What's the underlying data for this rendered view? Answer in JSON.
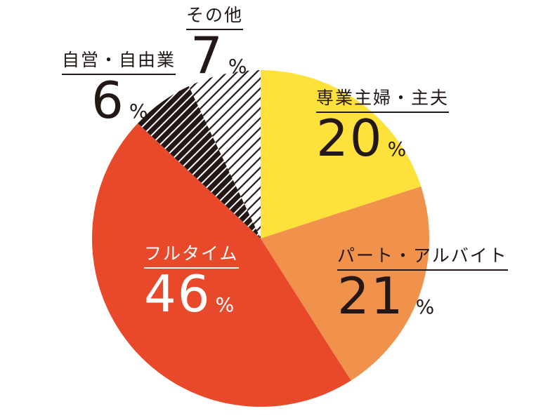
{
  "chart_data": {
    "type": "pie",
    "start": "top",
    "direction": "clockwise",
    "unit": "%",
    "slices": [
      {
        "label": "専業主婦・主夫",
        "value": 20,
        "color": "#FFE13B",
        "fill": "solid"
      },
      {
        "label": "パート・アルバイト",
        "value": 21,
        "color": "#F0924C",
        "fill": "solid"
      },
      {
        "label": "フルタイム",
        "value": 46,
        "color": "#E8492A",
        "fill": "solid"
      },
      {
        "label": "自営・自由業",
        "value": 6,
        "color": "#231815",
        "fill": "dark-hatch"
      },
      {
        "label": "その他",
        "value": 7,
        "color": "#ffffff",
        "fill": "light-hatch"
      }
    ]
  }
}
